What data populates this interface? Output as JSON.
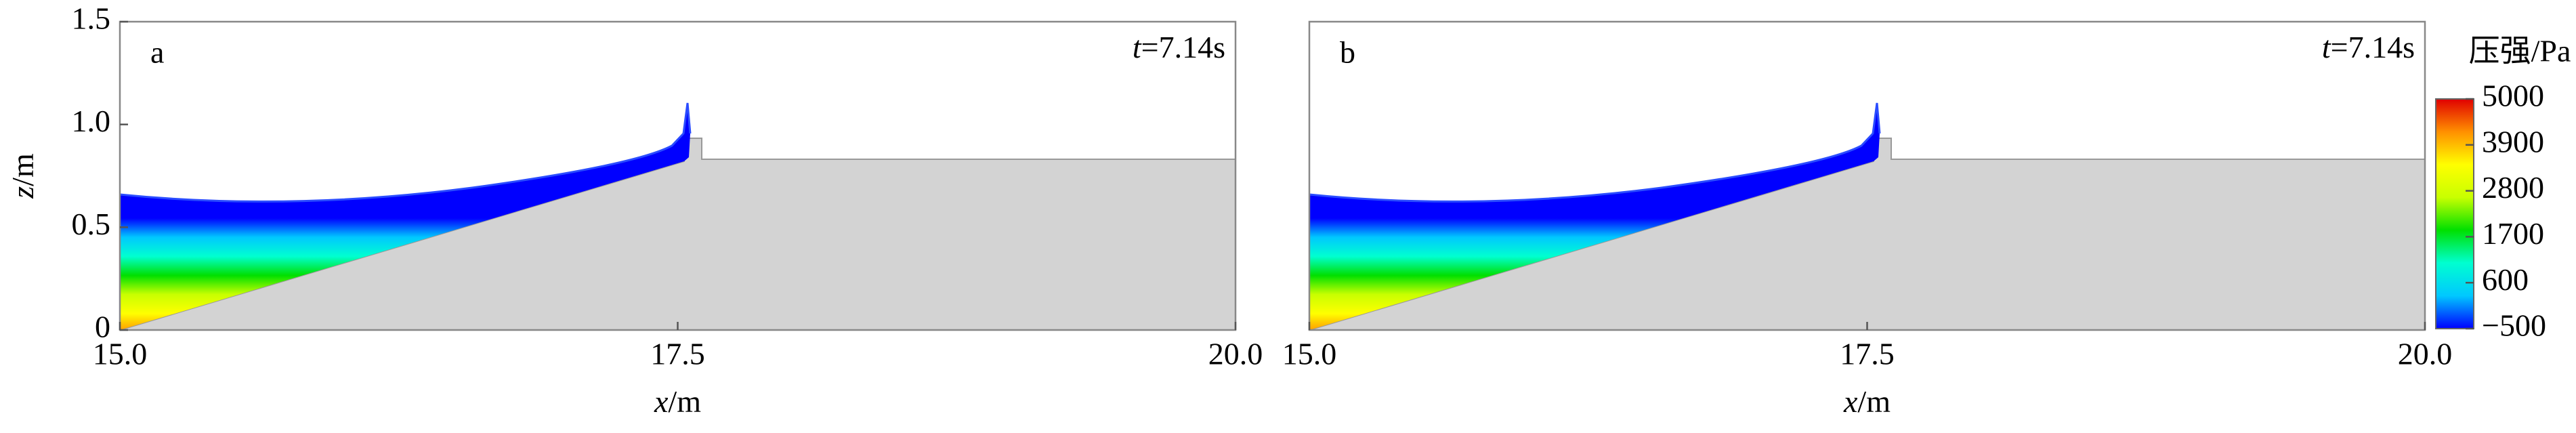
{
  "chart_data": [
    {
      "type": "contour",
      "panel_label": "a",
      "time_symbol": "t",
      "time_text": "=7.14s",
      "x_symbol": "x",
      "x_unit": "/m",
      "y_symbol": "z",
      "y_unit": "/m",
      "xlim": [
        15,
        20
      ],
      "xticks": [
        {
          "value": 15,
          "label": "15.0"
        },
        {
          "value": 17.5,
          "label": "17.5"
        },
        {
          "value": 20,
          "label": "20.0"
        }
      ],
      "ylim": [
        0,
        1.5
      ],
      "yticks": [
        0,
        0.5,
        {
          "value": 1,
          "label": "1.0"
        },
        1.5
      ]
    },
    {
      "type": "contour",
      "panel_label": "b",
      "time_symbol": "t",
      "time_text": "=7.14s",
      "x_symbol": "x",
      "x_unit": "/m",
      "xlim": [
        15,
        20
      ],
      "xticks": [
        {
          "value": 15,
          "label": "15.0"
        },
        {
          "value": 17.5,
          "label": "17.5"
        },
        {
          "value": 20,
          "label": "20.0"
        }
      ],
      "ylim": [
        0,
        1.5
      ]
    }
  ],
  "colorbar": {
    "label": "压强/Pa",
    "lim": [
      -500,
      5000
    ],
    "ticks": [
      5000,
      3900,
      2800,
      1700,
      600,
      {
        "value": -500,
        "label": "−500"
      }
    ],
    "colors": [
      "#0000ff",
      "#00c8ff",
      "#00ffd0",
      "#00e000",
      "#c8ff00",
      "#ffff00",
      "#ff9000",
      "#e00000"
    ]
  }
}
